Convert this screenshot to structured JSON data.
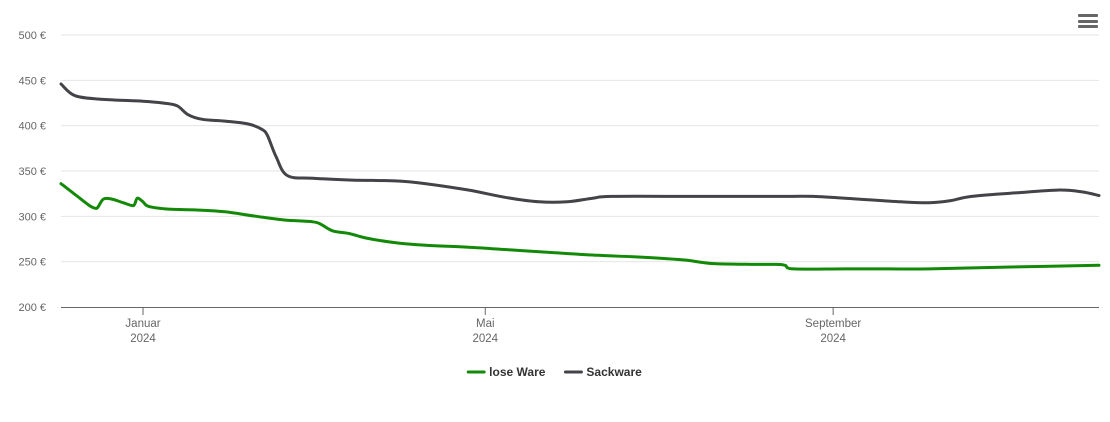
{
  "chart_data": {
    "type": "line",
    "title": "",
    "xlabel": "",
    "ylabel": "",
    "y_unit": "€",
    "ylim": [
      200,
      500
    ],
    "y_ticks": [
      {
        "value": 200,
        "label": "200 €"
      },
      {
        "value": 250,
        "label": "250 €"
      },
      {
        "value": 300,
        "label": "300 €"
      },
      {
        "value": 350,
        "label": "350 €"
      },
      {
        "value": 400,
        "label": "400 €"
      },
      {
        "value": 450,
        "label": "450 €"
      },
      {
        "value": 500,
        "label": "500 €"
      }
    ],
    "xlim": [
      "2023-12-03",
      "2024-12-04"
    ],
    "x_ticks": [
      {
        "date": "2024-01-01",
        "label": "Januar",
        "label2": "2024"
      },
      {
        "date": "2024-05-01",
        "label": "Mai",
        "label2": "2024"
      },
      {
        "date": "2024-09-01",
        "label": "September",
        "label2": "2024"
      }
    ],
    "grid": "horizontal",
    "legend_position": "bottom-center",
    "series": [
      {
        "name": "lose Ware",
        "color": "#138a07",
        "points": [
          [
            "2023-12-03",
            336
          ],
          [
            "2023-12-08",
            324
          ],
          [
            "2023-12-13",
            312
          ],
          [
            "2023-12-15",
            309
          ],
          [
            "2023-12-16",
            310
          ],
          [
            "2023-12-18",
            319
          ],
          [
            "2023-12-21",
            319
          ],
          [
            "2023-12-25",
            315
          ],
          [
            "2023-12-28",
            312
          ],
          [
            "2023-12-29",
            313
          ],
          [
            "2023-12-30",
            320
          ],
          [
            "2024-01-01",
            316
          ],
          [
            "2024-01-03",
            311
          ],
          [
            "2024-01-10",
            308
          ],
          [
            "2024-01-20",
            307
          ],
          [
            "2024-01-30",
            305
          ],
          [
            "2024-02-10",
            300
          ],
          [
            "2024-02-20",
            296
          ],
          [
            "2024-03-01",
            294
          ],
          [
            "2024-03-04",
            291
          ],
          [
            "2024-03-08",
            284
          ],
          [
            "2024-03-14",
            281
          ],
          [
            "2024-03-20",
            276
          ],
          [
            "2024-03-30",
            271
          ],
          [
            "2024-04-10",
            268
          ],
          [
            "2024-04-25",
            266
          ],
          [
            "2024-05-10",
            263
          ],
          [
            "2024-05-25",
            260
          ],
          [
            "2024-06-10",
            257
          ],
          [
            "2024-06-25",
            255
          ],
          [
            "2024-07-10",
            252
          ],
          [
            "2024-07-20",
            248
          ],
          [
            "2024-08-05",
            247
          ],
          [
            "2024-08-12",
            247
          ],
          [
            "2024-08-15",
            246
          ],
          [
            "2024-08-18",
            242
          ],
          [
            "2024-09-05",
            242
          ],
          [
            "2024-09-20",
            242
          ],
          [
            "2024-10-05",
            242
          ],
          [
            "2024-11-01",
            244
          ],
          [
            "2024-12-04",
            246
          ]
        ]
      },
      {
        "name": "Sackware",
        "color": "#434348",
        "points": [
          [
            "2023-12-03",
            446
          ],
          [
            "2023-12-08",
            433
          ],
          [
            "2023-12-18",
            429
          ],
          [
            "2024-01-01",
            427
          ],
          [
            "2024-01-08",
            425
          ],
          [
            "2024-01-13",
            422
          ],
          [
            "2024-01-17",
            412
          ],
          [
            "2024-01-22",
            407
          ],
          [
            "2024-01-30",
            405
          ],
          [
            "2024-02-07",
            402
          ],
          [
            "2024-02-12",
            396
          ],
          [
            "2024-02-14",
            389
          ],
          [
            "2024-02-17",
            366
          ],
          [
            "2024-02-21",
            345
          ],
          [
            "2024-03-01",
            342
          ],
          [
            "2024-03-15",
            340
          ],
          [
            "2024-03-31",
            339
          ],
          [
            "2024-04-10",
            336
          ],
          [
            "2024-04-25",
            329
          ],
          [
            "2024-05-08",
            321
          ],
          [
            "2024-05-20",
            316
          ],
          [
            "2024-05-30",
            316
          ],
          [
            "2024-06-08",
            320
          ],
          [
            "2024-06-15",
            322
          ],
          [
            "2024-07-15",
            322
          ],
          [
            "2024-08-15",
            322
          ],
          [
            "2024-08-25",
            322
          ],
          [
            "2024-09-10",
            319
          ],
          [
            "2024-09-25",
            316
          ],
          [
            "2024-10-05",
            315
          ],
          [
            "2024-10-12",
            317
          ],
          [
            "2024-10-20",
            322
          ],
          [
            "2024-11-05",
            326
          ],
          [
            "2024-11-20",
            329
          ],
          [
            "2024-11-28",
            327
          ],
          [
            "2024-12-04",
            323
          ]
        ]
      }
    ]
  }
}
